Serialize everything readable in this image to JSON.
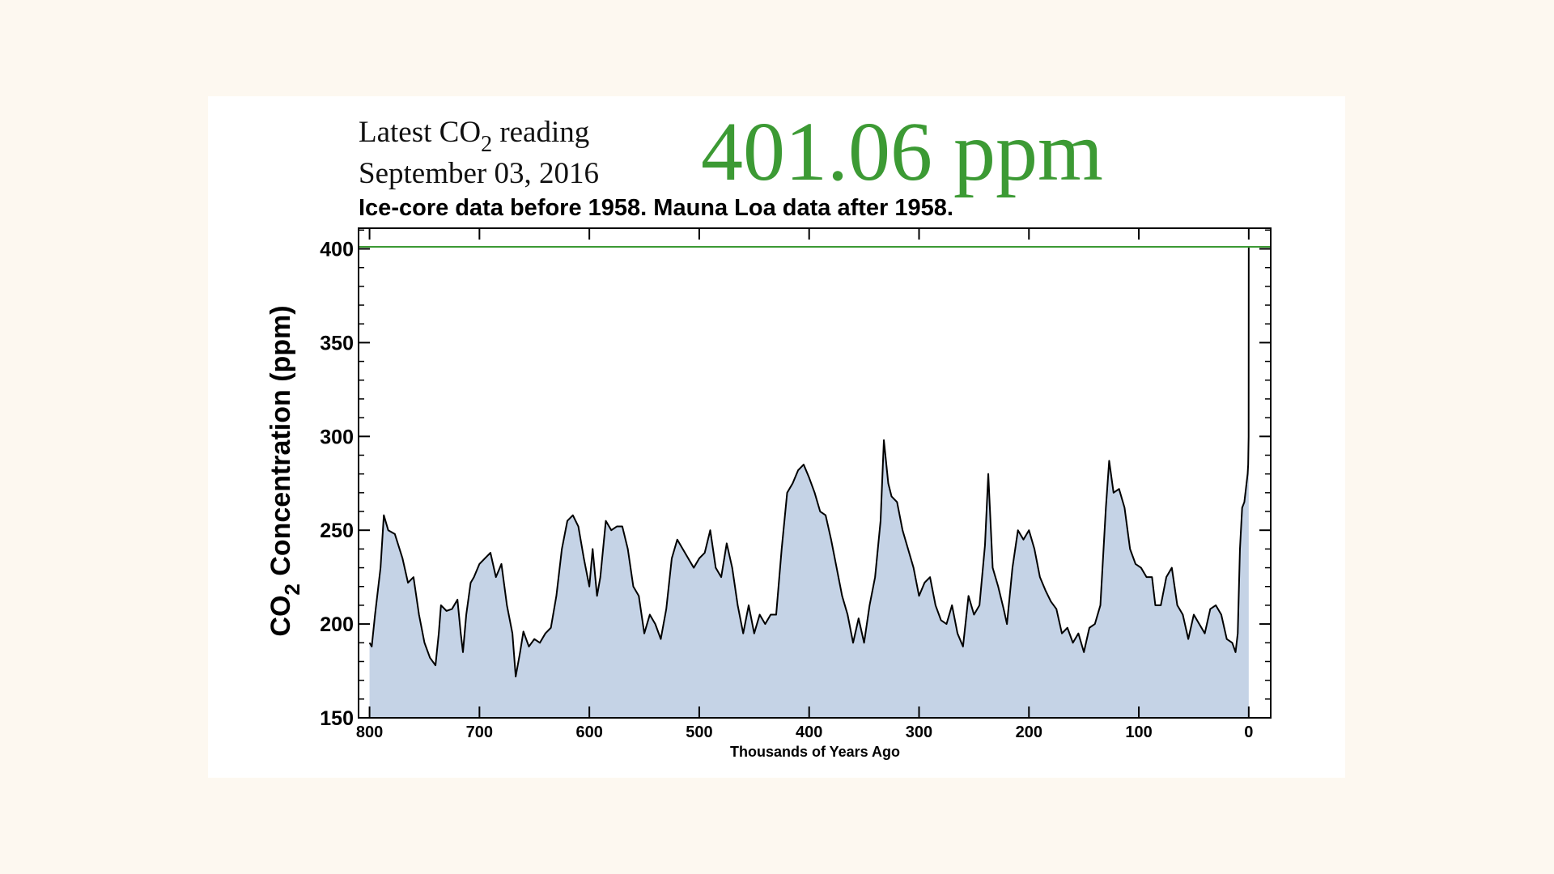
{
  "chart_data": {
    "type": "area",
    "reading_label": {
      "prefix": "Latest CO",
      "sub": "2",
      "suffix": " reading"
    },
    "date": "September 03, 2016",
    "latest_value": 401.06,
    "latest_value_label": "401.06 ppm",
    "latest_color": "#3c9a34",
    "subtitle": "Ice-core data before 1958. Mauna Loa data after 1958.",
    "y_label": {
      "prefix": "CO",
      "sub": "2",
      "suffix": " Concentration (ppm)"
    },
    "x_label": "Thousands of Years Ago",
    "xlim": [
      810,
      -20
    ],
    "xticks": [
      800,
      700,
      600,
      500,
      400,
      300,
      200,
      100,
      0
    ],
    "ylim": [
      150,
      411
    ],
    "yticks": [
      150,
      200,
      250,
      300,
      350,
      400
    ],
    "yminor_ticks": [
      160,
      170,
      180,
      190,
      210,
      220,
      230,
      240,
      260,
      270,
      280,
      290,
      310,
      320,
      330,
      340,
      360,
      370,
      380,
      390,
      410
    ],
    "line_color": "#000000",
    "fill_color": "#c5d3e6",
    "x": [
      800,
      798,
      795,
      790,
      787,
      783,
      777,
      770,
      765,
      760,
      755,
      750,
      745,
      740,
      737,
      735,
      730,
      725,
      720,
      717,
      715,
      712,
      708,
      705,
      700,
      695,
      690,
      685,
      680,
      675,
      670,
      667,
      663,
      660,
      655,
      650,
      645,
      640,
      635,
      630,
      625,
      620,
      615,
      610,
      605,
      600,
      597,
      593,
      590,
      585,
      580,
      575,
      570,
      565,
      560,
      555,
      550,
      545,
      540,
      535,
      530,
      525,
      520,
      515,
      510,
      505,
      500,
      495,
      490,
      485,
      480,
      475,
      470,
      465,
      460,
      455,
      450,
      445,
      440,
      435,
      430,
      425,
      420,
      415,
      410,
      405,
      400,
      395,
      390,
      385,
      380,
      375,
      370,
      365,
      360,
      355,
      350,
      345,
      340,
      335,
      332,
      328,
      325,
      320,
      315,
      310,
      305,
      300,
      295,
      290,
      285,
      280,
      275,
      270,
      265,
      260,
      255,
      250,
      245,
      240,
      237,
      233,
      228,
      223,
      220,
      215,
      210,
      205,
      200,
      195,
      190,
      185,
      180,
      175,
      170,
      165,
      160,
      155,
      150,
      145,
      140,
      135,
      130,
      127,
      123,
      118,
      113,
      108,
      103,
      98,
      93,
      88,
      85,
      80,
      75,
      70,
      65,
      60,
      55,
      50,
      45,
      40,
      35,
      30,
      25,
      20,
      15,
      12,
      10,
      8,
      6,
      4,
      2,
      1,
      0.5,
      0.1,
      0
    ],
    "values": [
      190,
      188,
      205,
      230,
      258,
      250,
      248,
      235,
      222,
      225,
      205,
      190,
      182,
      178,
      195,
      210,
      207,
      208,
      213,
      195,
      185,
      205,
      222,
      225,
      232,
      235,
      238,
      225,
      232,
      210,
      195,
      172,
      185,
      196,
      188,
      192,
      190,
      195,
      198,
      215,
      240,
      255,
      258,
      252,
      235,
      220,
      240,
      215,
      225,
      255,
      250,
      252,
      252,
      240,
      220,
      215,
      195,
      205,
      200,
      192,
      208,
      235,
      245,
      240,
      235,
      230,
      235,
      238,
      250,
      230,
      225,
      243,
      230,
      210,
      195,
      210,
      195,
      205,
      200,
      205,
      205,
      240,
      270,
      275,
      282,
      285,
      278,
      270,
      260,
      258,
      245,
      230,
      215,
      205,
      190,
      203,
      190,
      210,
      225,
      255,
      298,
      275,
      268,
      265,
      250,
      240,
      230,
      215,
      222,
      225,
      210,
      202,
      200,
      210,
      195,
      188,
      215,
      205,
      210,
      242,
      280,
      230,
      220,
      208,
      200,
      230,
      250,
      245,
      250,
      240,
      225,
      218,
      212,
      208,
      195,
      198,
      190,
      195,
      185,
      198,
      200,
      210,
      262,
      287,
      270,
      272,
      262,
      240,
      232,
      230,
      225,
      225,
      210,
      210,
      225,
      230,
      210,
      205,
      192,
      205,
      200,
      195,
      208,
      210,
      205,
      192,
      190,
      185,
      195,
      240,
      262,
      265,
      275,
      280,
      285,
      300,
      401
    ]
  }
}
